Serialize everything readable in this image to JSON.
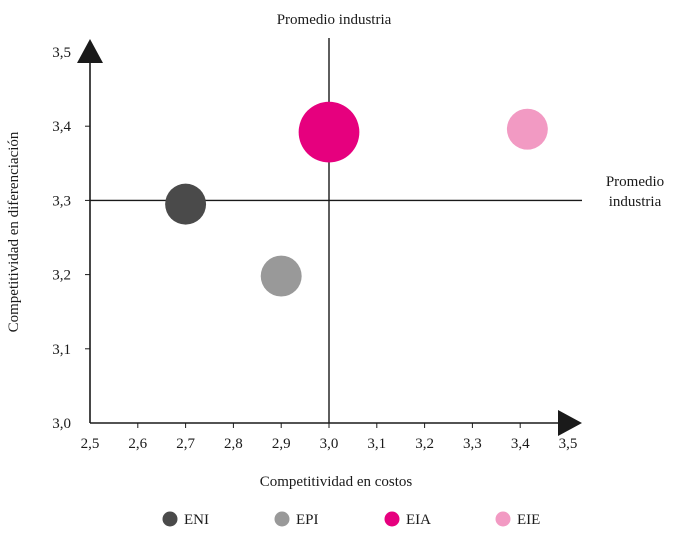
{
  "chart_data": {
    "type": "scatter",
    "title": "",
    "xlabel": "Competitividad en costos",
    "ylabel": "Competitividad en diferenciación",
    "xlim": [
      2.5,
      3.5
    ],
    "ylim": [
      3.0,
      3.5
    ],
    "x_ticks": [
      "2,5",
      "2,6",
      "2,7",
      "2,8",
      "2,9",
      "3,0",
      "3,1",
      "3,2",
      "3,3",
      "3,4",
      "3,5"
    ],
    "y_ticks": [
      "3,0",
      "3,1",
      "3,2",
      "3,3",
      "3,4",
      "3,5"
    ],
    "grid": false,
    "legend_position": "bottom",
    "reference_lines": {
      "vertical": {
        "x": 3.0,
        "label": "Promedio industria"
      },
      "horizontal": {
        "y": 3.3,
        "label_line1": "Promedio",
        "label_line2": "industria"
      }
    },
    "series": [
      {
        "name": "ENI",
        "x": 2.7,
        "y": 3.295,
        "relative_size": 0.93,
        "color": "#4a4a4a"
      },
      {
        "name": "EPI",
        "x": 2.9,
        "y": 3.198,
        "relative_size": 0.93,
        "color": "#999999"
      },
      {
        "name": "EIA",
        "x": 3.0,
        "y": 3.392,
        "relative_size": 1.38,
        "color": "#e6007e"
      },
      {
        "name": "EIE",
        "x": 3.415,
        "y": 3.396,
        "relative_size": 0.93,
        "color": "#f29ac3"
      }
    ]
  }
}
